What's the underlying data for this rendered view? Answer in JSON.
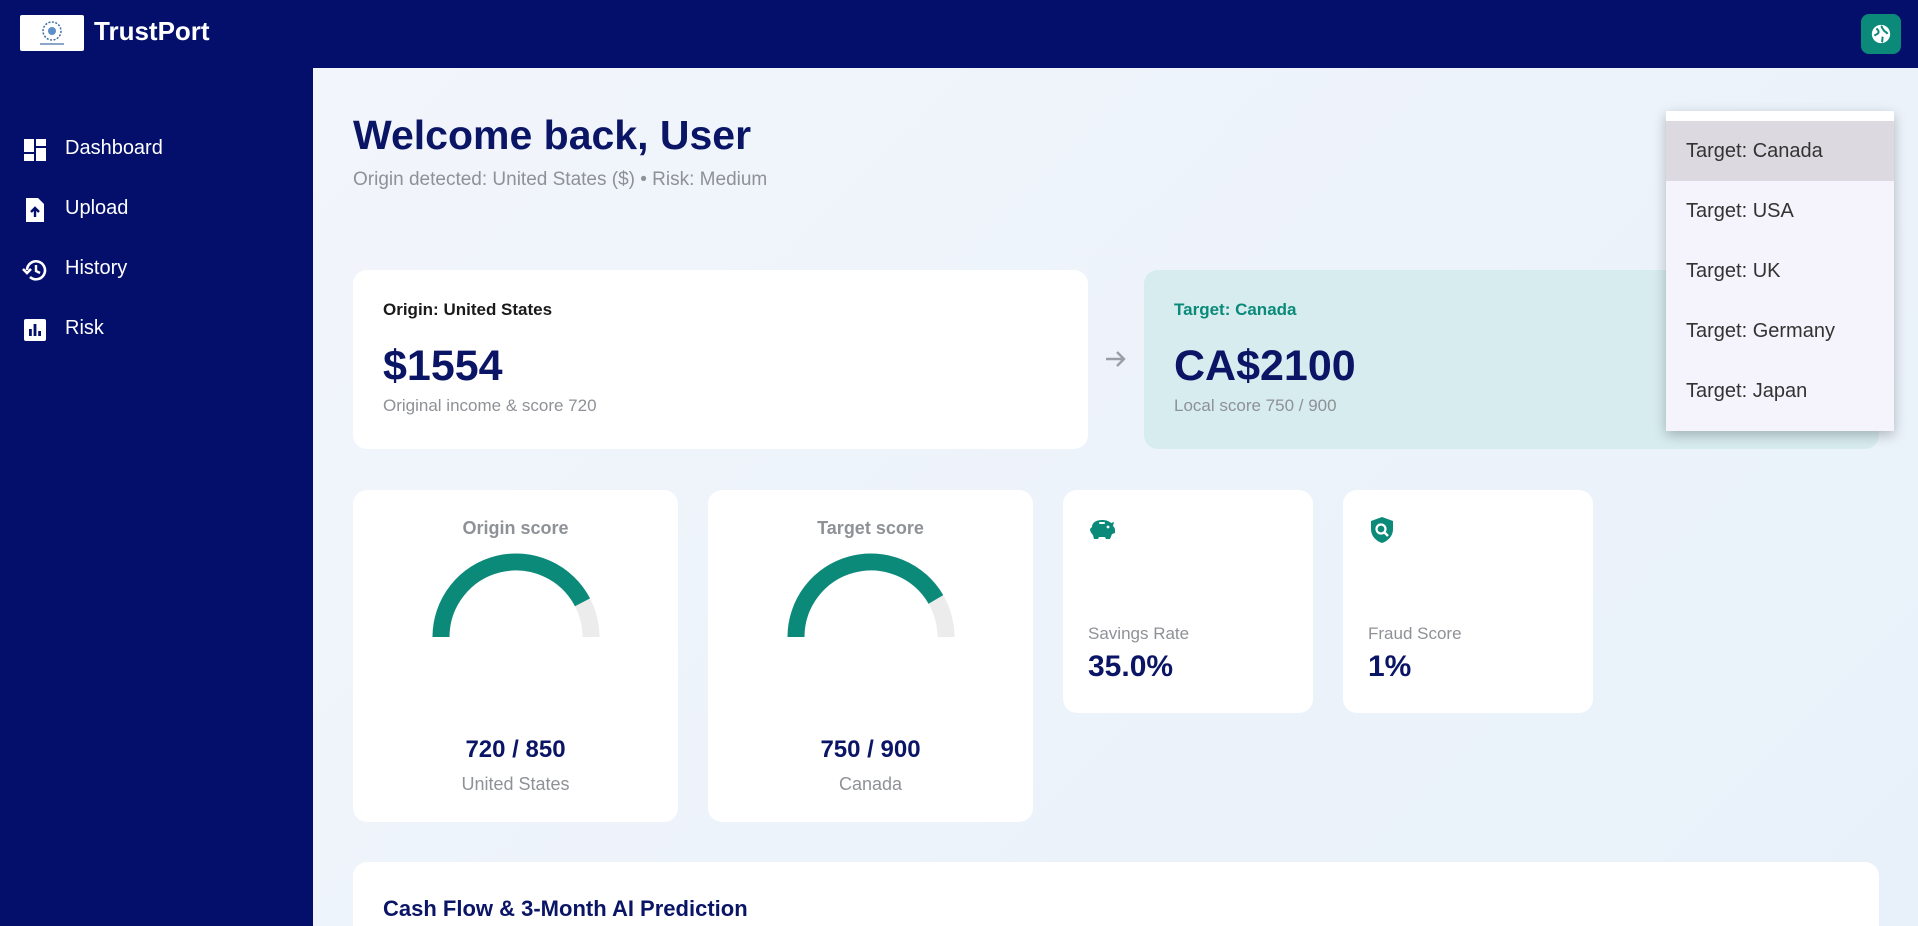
{
  "app": {
    "brand": "TrustPort"
  },
  "colors": {
    "navy": "#030f6b",
    "teal": "#0b8a7a",
    "heading": "#0b1566"
  },
  "sidebar": {
    "items": [
      {
        "label": "Dashboard",
        "icon": "dashboard-icon"
      },
      {
        "label": "Upload",
        "icon": "upload-file-icon"
      },
      {
        "label": "History",
        "icon": "history-icon"
      },
      {
        "label": "Risk",
        "icon": "bar-chart-icon"
      }
    ]
  },
  "header": {
    "welcome": "Welcome back, User",
    "subinfo": "Origin detected: United States ($) • Risk: Medium"
  },
  "origin": {
    "heading": "Origin: United States",
    "amount": "$1554",
    "note": "Original income & score 720"
  },
  "target": {
    "heading": "Target: Canada",
    "amount": "CA$2100",
    "note": "Local score 750 / 900"
  },
  "scores": [
    {
      "title": "Origin score",
      "value": "720 / 850",
      "country": "United States",
      "fraction": 0.847
    },
    {
      "title": "Target score",
      "value": "750 / 900",
      "country": "Canada",
      "fraction": 0.833
    }
  ],
  "metrics": [
    {
      "label": "Savings Rate",
      "value": "35.0%",
      "icon": "piggy-bank-icon"
    },
    {
      "label": "Fraud Score",
      "value": "1%",
      "icon": "shield-search-icon"
    }
  ],
  "cashflow": {
    "title": "Cash Flow & 3-Month AI Prediction"
  },
  "dropdown": {
    "selected": "Target: Canada",
    "options": [
      "Target: Canada",
      "Target: USA",
      "Target: UK",
      "Target: Germany",
      "Target: Japan"
    ]
  }
}
